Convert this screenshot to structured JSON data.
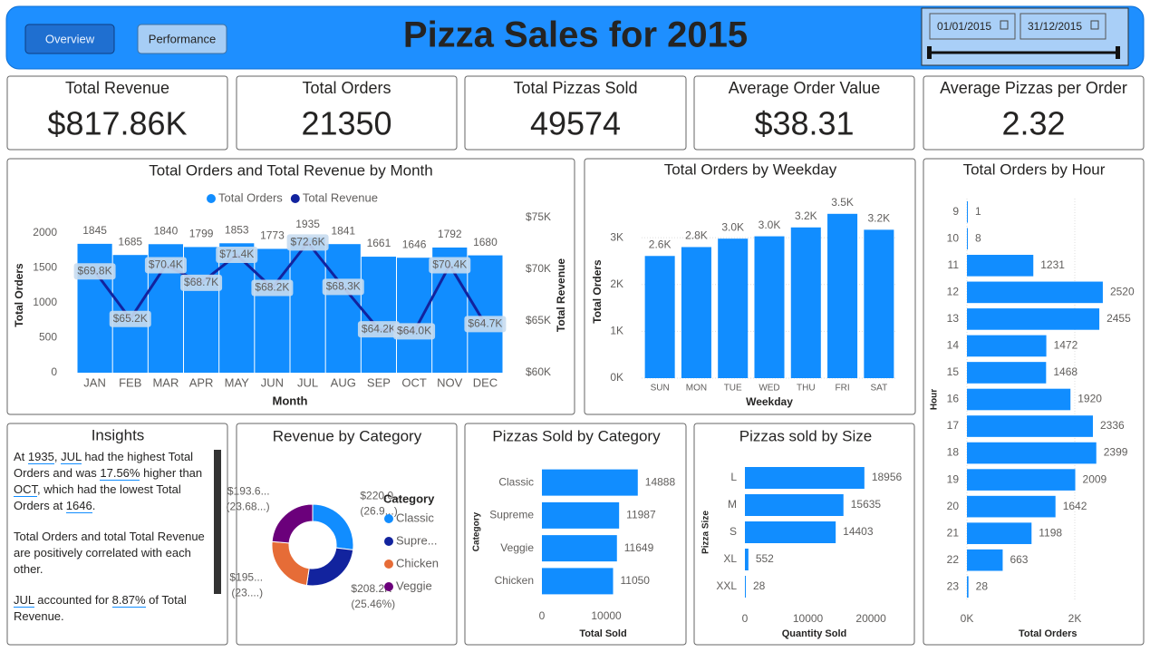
{
  "header": {
    "buttons": [
      "Overview",
      "Performance"
    ],
    "title": "Pizza Sales for 2015",
    "date_range": [
      "01/01/2015",
      "31/12/2015"
    ]
  },
  "kpis": [
    {
      "label": "Total Revenue",
      "value": "$817.86K"
    },
    {
      "label": "Total Orders",
      "value": "21350"
    },
    {
      "label": "Total Pizzas Sold",
      "value": "49574"
    },
    {
      "label": "Average Order Value",
      "value": "$38.31"
    },
    {
      "label": "Average Pizzas per Order",
      "value": "2.32"
    }
  ],
  "insights": {
    "title": "Insights",
    "paragraphs": [
      [
        "At ",
        "1935",
        ", ",
        "JUL",
        " had the highest Total Orders and was ",
        "17.56%",
        " higher than ",
        "OCT",
        ", which had the lowest Total Orders at ",
        "1646",
        "."
      ],
      [
        "Total Orders and total Total Revenue are positively correlated with each other."
      ],
      [
        "",
        "JUL",
        " accounted for ",
        "8.87%",
        " of Total Revenue."
      ]
    ]
  },
  "chart_data": [
    {
      "type": "bar-line",
      "title": "Total Orders and Total Revenue by Month",
      "categories": [
        "JAN",
        "FEB",
        "MAR",
        "APR",
        "MAY",
        "JUN",
        "JUL",
        "AUG",
        "SEP",
        "OCT",
        "NOV",
        "DEC"
      ],
      "series": [
        {
          "name": "Total Orders",
          "color": "#118dff",
          "values": [
            1845,
            1685,
            1840,
            1799,
            1853,
            1773,
            1935,
            1841,
            1661,
            1646,
            1792,
            1680
          ]
        },
        {
          "name": "Total Revenue",
          "color": "#12239e",
          "axis": "y2",
          "values": [
            69800,
            65200,
            70400,
            68700,
            71400,
            68200,
            72600,
            68300,
            64200,
            64000,
            70400,
            64700
          ],
          "value_labels": [
            "$69.8K",
            "$65.2K",
            "$70.4K",
            "$68.7K",
            "$71.4K",
            "$68.2K",
            "$72.6K",
            "$68.3K",
            "$64.2K",
            "$64.0K",
            "$70.4K",
            "$64.7K"
          ]
        }
      ],
      "ylim": [
        0,
        2220
      ],
      "yticks": [
        0,
        500,
        1000,
        1500,
        2000
      ],
      "y2lim": [
        60000,
        75000
      ],
      "y2ticks": [
        {
          "value": 60000,
          "label": "$60K"
        },
        {
          "value": 65000,
          "label": "$65K"
        },
        {
          "value": 70000,
          "label": "$70K"
        },
        {
          "value": 75000,
          "label": "$75K"
        }
      ],
      "xlabel": "Month",
      "ylabel": "Total Orders",
      "y2label": "Total Revenue",
      "legend": "top"
    },
    {
      "type": "bar",
      "title": "Total Orders by Weekday",
      "categories": [
        "SUN",
        "MON",
        "TUE",
        "WED",
        "THU",
        "FRI",
        "SAT"
      ],
      "values": [
        2610,
        2800,
        2980,
        3030,
        3220,
        3510,
        3170
      ],
      "value_labels": [
        "2.6K",
        "2.8K",
        "3.0K",
        "3.0K",
        "3.2K",
        "3.5K",
        "3.2K"
      ],
      "color": "#118dff",
      "ylim": [
        0,
        3700
      ],
      "yticks": [
        {
          "value": 0,
          "label": "0K"
        },
        {
          "value": 1000,
          "label": "1K"
        },
        {
          "value": 2000,
          "label": "2K"
        },
        {
          "value": 3000,
          "label": "3K"
        }
      ],
      "xlabel": "Weekday",
      "ylabel": "Total Orders",
      "grid": true
    },
    {
      "type": "hbar",
      "title": "Total Orders by Hour",
      "categories": [
        "9",
        "10",
        "11",
        "12",
        "13",
        "14",
        "15",
        "16",
        "17",
        "18",
        "19",
        "20",
        "21",
        "22",
        "23"
      ],
      "values": [
        1,
        8,
        1231,
        2520,
        2455,
        1472,
        1468,
        1920,
        2336,
        2399,
        2009,
        1642,
        1198,
        663,
        28
      ],
      "color": "#118dff",
      "xlim": [
        0,
        3000
      ],
      "xticks": [
        {
          "value": 0,
          "label": "0K"
        },
        {
          "value": 2000,
          "label": "2K"
        }
      ],
      "xlabel": "Total Orders",
      "ylabel": "Hour",
      "grid": true
    },
    {
      "type": "donut",
      "title": "Revenue by Category",
      "categories": [
        "Classic",
        "Supre...",
        "Chicken",
        "Veggie"
      ],
      "values": [
        220053,
        208197,
        195920,
        193690
      ],
      "value_labels": [
        "$220.0...",
        "$208.2K",
        "$195...",
        "$193.6..."
      ],
      "percent_labels": [
        "(26.9...)",
        "(25.46%)",
        "(23....)",
        "(23.68...)"
      ],
      "colors": [
        "#118dff",
        "#12239e",
        "#e66c37",
        "#6b007b"
      ],
      "legend_title": "Category",
      "legend": "right"
    },
    {
      "type": "hbar",
      "title": "Pizzas Sold by Category",
      "categories": [
        "Classic",
        "Supreme",
        "Veggie",
        "Chicken"
      ],
      "values": [
        14888,
        11987,
        11649,
        11050
      ],
      "color": "#118dff",
      "xlim": [
        0,
        19000
      ],
      "xticks": [
        0,
        10000
      ],
      "xlabel": "Total Sold",
      "ylabel": "Category",
      "grid": false
    },
    {
      "type": "hbar",
      "title": "Pizzas sold by Size",
      "categories": [
        "L",
        "M",
        "S",
        "XL",
        "XXL"
      ],
      "values": [
        18956,
        15635,
        14403,
        552,
        28
      ],
      "color": "#118dff",
      "xlim": [
        0,
        22000
      ],
      "xticks": [
        0,
        10000,
        20000
      ],
      "xlabel": "Quantity Sold",
      "ylabel": "Pizza Size",
      "grid": false
    }
  ]
}
